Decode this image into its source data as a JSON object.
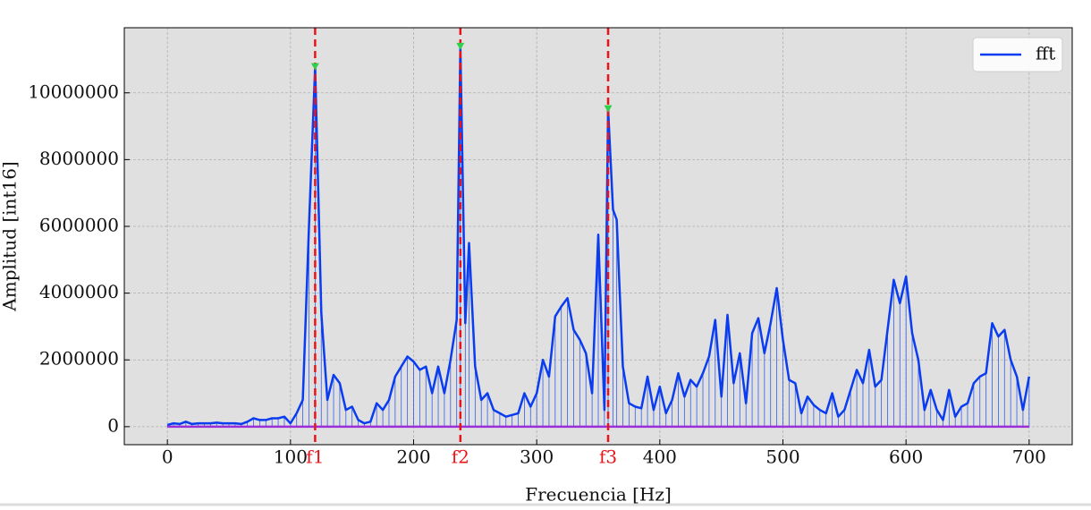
{
  "chart_data": {
    "type": "line",
    "xlabel": "Frecuencia [Hz]",
    "ylabel": "Amplitud [int16]",
    "xlim": [
      -35,
      735
    ],
    "ylim": [
      -540000,
      11950000
    ],
    "xticks": [
      0,
      100,
      200,
      300,
      400,
      500,
      600,
      700
    ],
    "yticks": [
      0,
      2000000,
      4000000,
      6000000,
      8000000,
      10000000
    ],
    "grid": true,
    "legend": "upper right",
    "stems": true,
    "series": [
      {
        "name": "fft",
        "color": "#0a3cf0",
        "x": [
          0,
          5,
          10,
          15,
          20,
          25,
          30,
          35,
          40,
          45,
          50,
          55,
          60,
          65,
          70,
          75,
          80,
          85,
          90,
          95,
          100,
          105,
          110,
          115,
          120,
          125,
          130,
          135,
          140,
          145,
          150,
          155,
          160,
          165,
          170,
          175,
          180,
          185,
          190,
          195,
          200,
          205,
          210,
          215,
          220,
          225,
          230,
          235,
          238,
          242,
          245,
          250,
          255,
          260,
          265,
          270,
          275,
          280,
          285,
          290,
          295,
          300,
          305,
          310,
          315,
          320,
          325,
          330,
          335,
          340,
          345,
          350,
          355,
          358,
          362,
          365,
          370,
          375,
          380,
          385,
          390,
          395,
          400,
          405,
          410,
          415,
          420,
          425,
          430,
          435,
          440,
          445,
          450,
          455,
          460,
          465,
          470,
          475,
          480,
          485,
          490,
          495,
          500,
          505,
          510,
          515,
          520,
          525,
          530,
          535,
          540,
          545,
          550,
          555,
          560,
          565,
          570,
          575,
          580,
          585,
          590,
          595,
          600,
          605,
          610,
          615,
          620,
          625,
          630,
          635,
          640,
          645,
          650,
          655,
          660,
          665,
          670,
          675,
          680,
          685,
          690,
          695,
          700
        ],
        "values": [
          50000,
          100000,
          80000,
          150000,
          80000,
          100000,
          100000,
          100000,
          120000,
          100000,
          100000,
          100000,
          80000,
          150000,
          250000,
          200000,
          200000,
          250000,
          250000,
          300000,
          100000,
          400000,
          800000,
          6000000,
          10780000,
          3400000,
          800000,
          1550000,
          1300000,
          500000,
          600000,
          200000,
          100000,
          150000,
          700000,
          500000,
          800000,
          1500000,
          1800000,
          2100000,
          1950000,
          1700000,
          1800000,
          1000000,
          1800000,
          1000000,
          2000000,
          3200000,
          11390000,
          3100000,
          5500000,
          1800000,
          800000,
          1000000,
          500000,
          400000,
          300000,
          350000,
          400000,
          1000000,
          600000,
          1000000,
          2000000,
          1500000,
          3300000,
          3600000,
          3850000,
          2900000,
          2600000,
          2200000,
          1000000,
          5750000,
          500000,
          9520000,
          6500000,
          6200000,
          1800000,
          700000,
          600000,
          550000,
          1500000,
          500000,
          1200000,
          400000,
          800000,
          1600000,
          900000,
          1400000,
          1200000,
          1600000,
          2100000,
          3200000,
          900000,
          3350000,
          1300000,
          2200000,
          700000,
          2800000,
          3250000,
          2200000,
          3100000,
          4150000,
          2600000,
          1400000,
          1300000,
          400000,
          900000,
          650000,
          500000,
          400000,
          1000000,
          300000,
          500000,
          1100000,
          1700000,
          1300000,
          2300000,
          1200000,
          1400000,
          2900000,
          4400000,
          3700000,
          4500000,
          2800000,
          2000000,
          500000,
          1100000,
          500000,
          200000,
          1100000,
          300000,
          600000,
          700000,
          1300000,
          1500000,
          1600000,
          3100000,
          2700000,
          2900000,
          2000000,
          1500000,
          500000,
          1500000
        ]
      }
    ],
    "peaks": [
      {
        "label": "f1",
        "x": 120,
        "y": 10780000,
        "color": "#e8141a",
        "marker_color": "#2fd04a"
      },
      {
        "label": "f2",
        "x": 238,
        "y": 11390000,
        "color": "#e8141a",
        "marker_color": "#2fd04a"
      },
      {
        "label": "f3",
        "x": 358,
        "y": 9520000,
        "color": "#e8141a",
        "marker_color": "#2fd04a"
      }
    ],
    "baseline_color": "#9b30d9"
  }
}
